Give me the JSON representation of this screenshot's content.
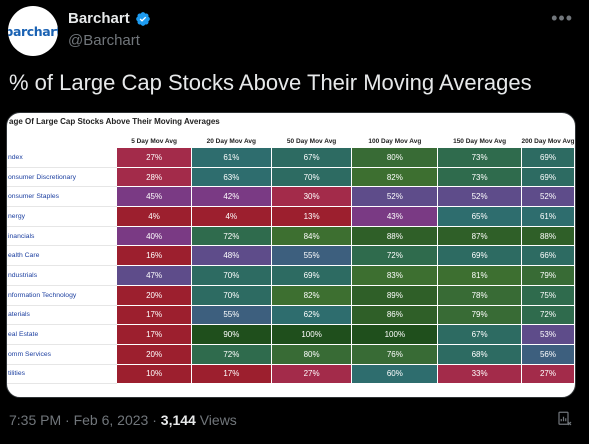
{
  "header": {
    "avatar_text": "barchart",
    "display_name": "Barchart",
    "handle": "@Barchart"
  },
  "tweet": {
    "text": "% of Large Cap Stocks Above Their Moving Averages"
  },
  "table": {
    "title": "age Of Large Cap Stocks Above Their Moving Averages",
    "columns": [
      "5 Day Mov Avg",
      "20 Day Mov Avg",
      "50 Day Mov Avg",
      "100 Day Mov Avg",
      "150 Day Mov Avg",
      "200 Day Mov Avg"
    ],
    "rows": [
      {
        "sector": "ndex",
        "values": [
          "27%",
          "61%",
          "67%",
          "80%",
          "73%",
          "69%"
        ]
      },
      {
        "sector": "onsumer Discretionary",
        "values": [
          "28%",
          "63%",
          "70%",
          "82%",
          "73%",
          "69%"
        ]
      },
      {
        "sector": "onsumer Staples",
        "values": [
          "45%",
          "42%",
          "30%",
          "52%",
          "52%",
          "52%"
        ]
      },
      {
        "sector": "nergy",
        "values": [
          "4%",
          "4%",
          "13%",
          "43%",
          "65%",
          "61%"
        ]
      },
      {
        "sector": "inancials",
        "values": [
          "40%",
          "72%",
          "84%",
          "88%",
          "87%",
          "88%"
        ]
      },
      {
        "sector": "ealth Care",
        "values": [
          "16%",
          "48%",
          "55%",
          "72%",
          "69%",
          "66%"
        ]
      },
      {
        "sector": "ndustrials",
        "values": [
          "47%",
          "70%",
          "69%",
          "83%",
          "81%",
          "79%"
        ]
      },
      {
        "sector": "nformation Technology",
        "values": [
          "20%",
          "70%",
          "82%",
          "89%",
          "78%",
          "75%"
        ]
      },
      {
        "sector": "aterials",
        "values": [
          "17%",
          "55%",
          "62%",
          "86%",
          "79%",
          "72%"
        ]
      },
      {
        "sector": "eal Estate",
        "values": [
          "17%",
          "90%",
          "100%",
          "100%",
          "67%",
          "53%"
        ]
      },
      {
        "sector": "omm Services",
        "values": [
          "20%",
          "72%",
          "80%",
          "76%",
          "68%",
          "56%"
        ]
      },
      {
        "sector": "tilities",
        "values": [
          "10%",
          "17%",
          "27%",
          "60%",
          "33%",
          "27%"
        ]
      }
    ]
  },
  "colors": {
    "background": "#000000",
    "text": "#e7e9ea",
    "muted": "#71767b",
    "verified": "#1d9bf0",
    "sector_link": "#1c3fa0"
  },
  "footer": {
    "time": "7:35 PM",
    "separator": "·",
    "date": "Feb 6, 2023",
    "views_count": "3,144",
    "views_label": "Views"
  }
}
